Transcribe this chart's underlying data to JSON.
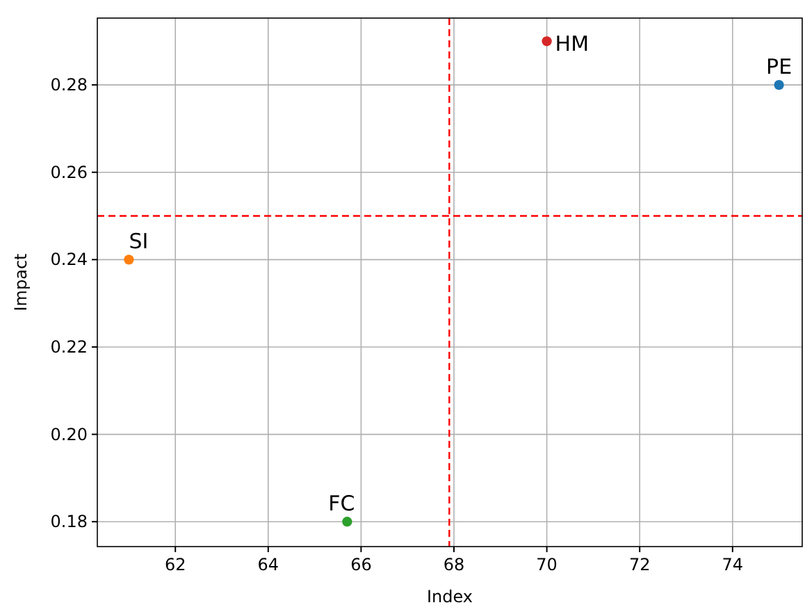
{
  "chart_data": {
    "type": "scatter",
    "xlabel": "Index",
    "ylabel": "Impact",
    "xlim": [
      60.32,
      75.5
    ],
    "ylim": [
      0.1743,
      0.2953
    ],
    "xticks": [
      62,
      64,
      66,
      68,
      70,
      72,
      74
    ],
    "yticks": [
      {
        "value": 0.18,
        "label": "0.18"
      },
      {
        "value": 0.2,
        "label": "0.20"
      },
      {
        "value": 0.22,
        "label": "0.22"
      },
      {
        "value": 0.24,
        "label": "0.24"
      },
      {
        "value": 0.26,
        "label": "0.26"
      },
      {
        "value": 0.28,
        "label": "0.28"
      }
    ],
    "grid": true,
    "marker": "circle",
    "series": [
      {
        "name": "PE",
        "color": "#1f77b4",
        "x": [
          75
        ],
        "values": [
          0.28
        ]
      },
      {
        "name": "SI",
        "color": "#ff7f0e",
        "x": [
          61
        ],
        "values": [
          0.24
        ]
      },
      {
        "name": "FC",
        "color": "#2ca02c",
        "x": [
          65.7
        ],
        "values": [
          0.18
        ]
      },
      {
        "name": "HM",
        "color": "#d62728",
        "x": [
          70
        ],
        "values": [
          0.29
        ]
      }
    ],
    "ref_lines": [
      {
        "axis": "x",
        "value": 67.9,
        "color": "#ff0000",
        "line_style": "dashed"
      },
      {
        "axis": "y",
        "value": 0.25,
        "color": "#ff0000",
        "line_style": "dashed"
      }
    ]
  }
}
